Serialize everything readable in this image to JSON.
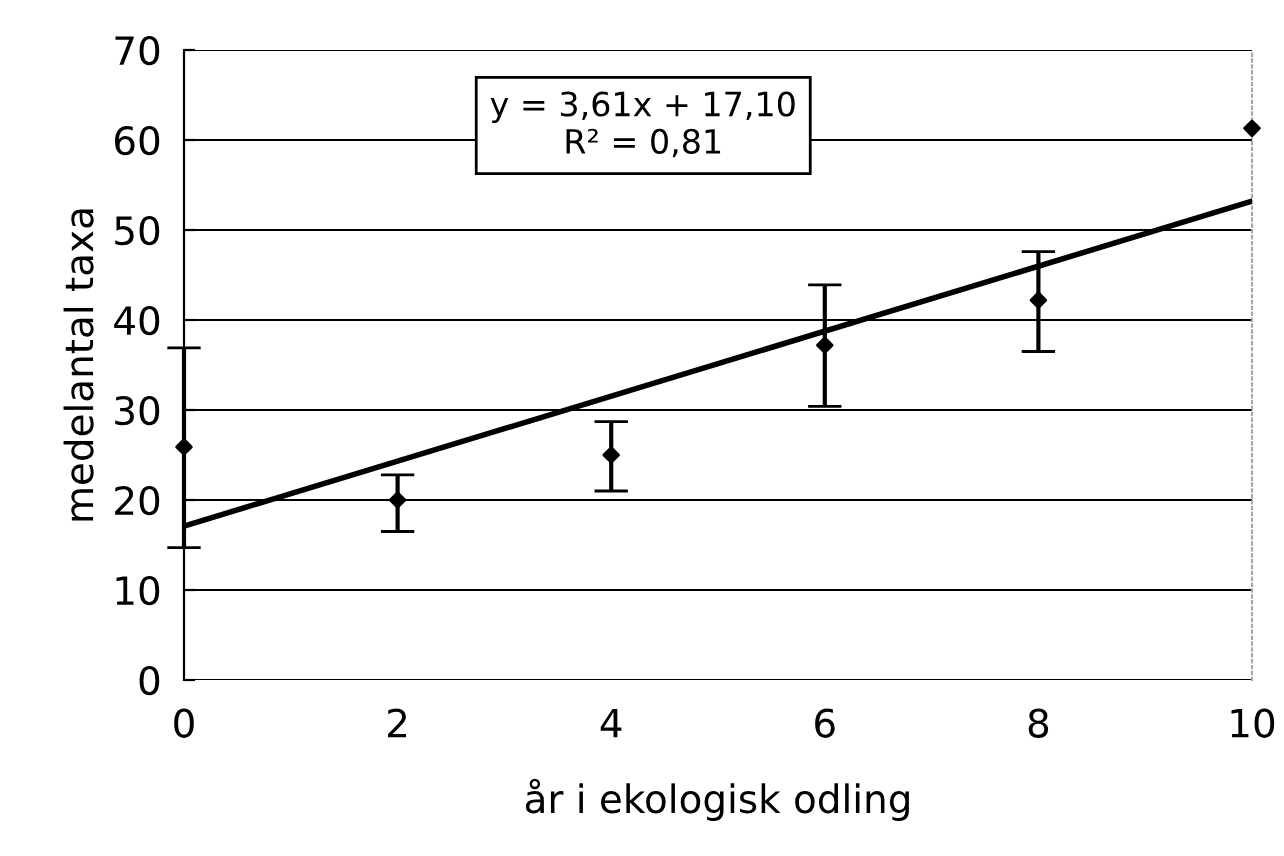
{
  "chart_data": {
    "type": "scatter",
    "xlabel": "år i ekologisk odling",
    "ylabel": "medelantal taxa",
    "x": [
      0,
      2,
      4,
      6,
      8,
      10
    ],
    "series": [
      {
        "type": "scatter",
        "color": "#000000",
        "marker": "diamond",
        "values": [
          25.9,
          20,
          25,
          37.2,
          42.2,
          61.3
        ],
        "errors": [
          [
            14.7,
            36.9
          ],
          [
            16.5,
            22.8
          ],
          [
            21.0,
            28.7
          ],
          [
            30.4,
            43.9
          ],
          [
            36.5,
            47.6
          ],
          null
        ]
      },
      {
        "type": "line",
        "color": "#000000",
        "x": [
          0,
          10
        ],
        "values": [
          17.1,
          53.2
        ]
      }
    ],
    "annotations": [
      "y = 3,61x + 17,10",
      "R² = 0,81"
    ],
    "xlim": [
      0,
      10
    ],
    "xticks": [
      0,
      2,
      4,
      6,
      8,
      10
    ],
    "ylim": [
      0,
      70
    ],
    "yticks": [
      0,
      10,
      20,
      30,
      40,
      50,
      60,
      70
    ],
    "grid": "y",
    "legend": false
  }
}
